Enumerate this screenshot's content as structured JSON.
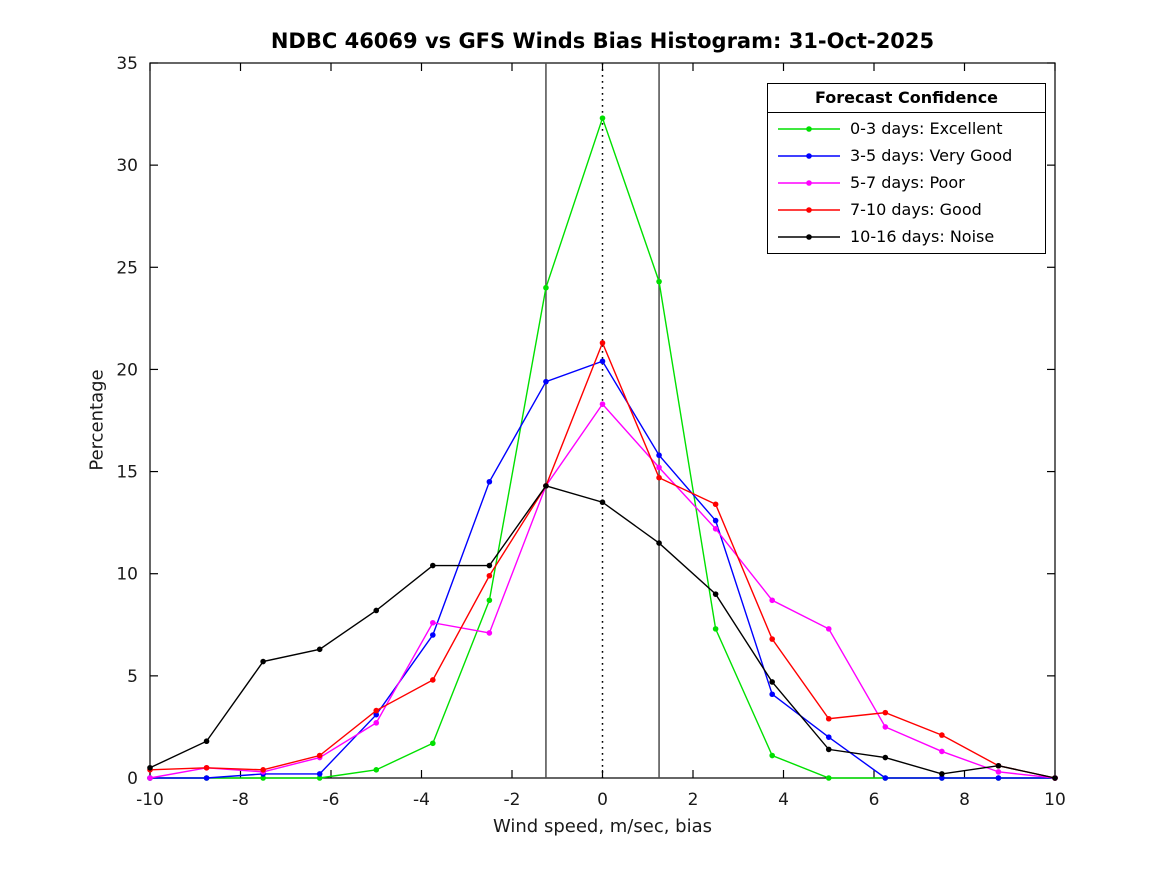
{
  "chart_data": {
    "type": "line",
    "title": "NDBC 46069 vs GFS Winds Bias Histogram: 31-Oct-2025",
    "xlabel": "Wind speed, m/sec, bias",
    "ylabel": "Percentage",
    "xlim": [
      -10,
      10
    ],
    "ylim": [
      0,
      35
    ],
    "xticks": [
      "-10",
      "-8",
      "-6",
      "-4",
      "-2",
      "0",
      "2",
      "4",
      "6",
      "8",
      "10"
    ],
    "yticks": [
      "0",
      "5",
      "10",
      "15",
      "20",
      "25",
      "30",
      "35"
    ],
    "grid": false,
    "x": [
      -10,
      -8.75,
      -7.5,
      -6.25,
      -5,
      -3.75,
      -2.5,
      -1.25,
      0,
      1.25,
      2.5,
      3.75,
      5,
      6.25,
      7.5,
      8.75,
      10
    ],
    "series": [
      {
        "name": "0-3 days: Excellent",
        "color": "#00e000",
        "values": [
          0,
          0,
          0,
          0,
          0.4,
          1.7,
          8.7,
          24.0,
          32.3,
          24.3,
          7.3,
          1.1,
          0,
          0,
          0,
          0,
          0
        ]
      },
      {
        "name": "3-5 days: Very Good",
        "color": "#0000ff",
        "values": [
          0,
          0,
          0.2,
          0.2,
          3.1,
          7.0,
          14.5,
          19.4,
          20.4,
          15.8,
          12.6,
          4.1,
          2.0,
          0,
          0,
          0,
          0
        ]
      },
      {
        "name": "5-7 days: Poor",
        "color": "#ff00ff",
        "values": [
          0,
          0.5,
          0.3,
          1.0,
          2.7,
          7.6,
          7.1,
          14.3,
          18.3,
          15.2,
          12.2,
          8.7,
          7.3,
          2.5,
          1.3,
          0.3,
          0
        ]
      },
      {
        "name": "7-10 days: Good",
        "color": "#ff0000",
        "values": [
          0.4,
          0.5,
          0.4,
          1.1,
          3.3,
          4.8,
          9.9,
          14.3,
          21.3,
          14.7,
          13.4,
          6.8,
          2.9,
          3.2,
          2.1,
          0.6,
          0
        ]
      },
      {
        "name": "10-16 days: Noise",
        "color": "#000000",
        "values": [
          0.5,
          1.8,
          5.7,
          6.3,
          8.2,
          10.4,
          10.4,
          14.3,
          13.5,
          11.5,
          9.0,
          4.7,
          1.4,
          1.0,
          0.2,
          0.6,
          0
        ]
      }
    ],
    "reference_lines": [
      {
        "x": -1.25,
        "style": "solid",
        "color": "#4d4d4d"
      },
      {
        "x": 0,
        "style": "dotted",
        "color": "#000000"
      },
      {
        "x": 1.25,
        "style": "solid",
        "color": "#4d4d4d"
      }
    ],
    "legend": {
      "title": "Forecast Confidence",
      "position": "top-right"
    }
  }
}
